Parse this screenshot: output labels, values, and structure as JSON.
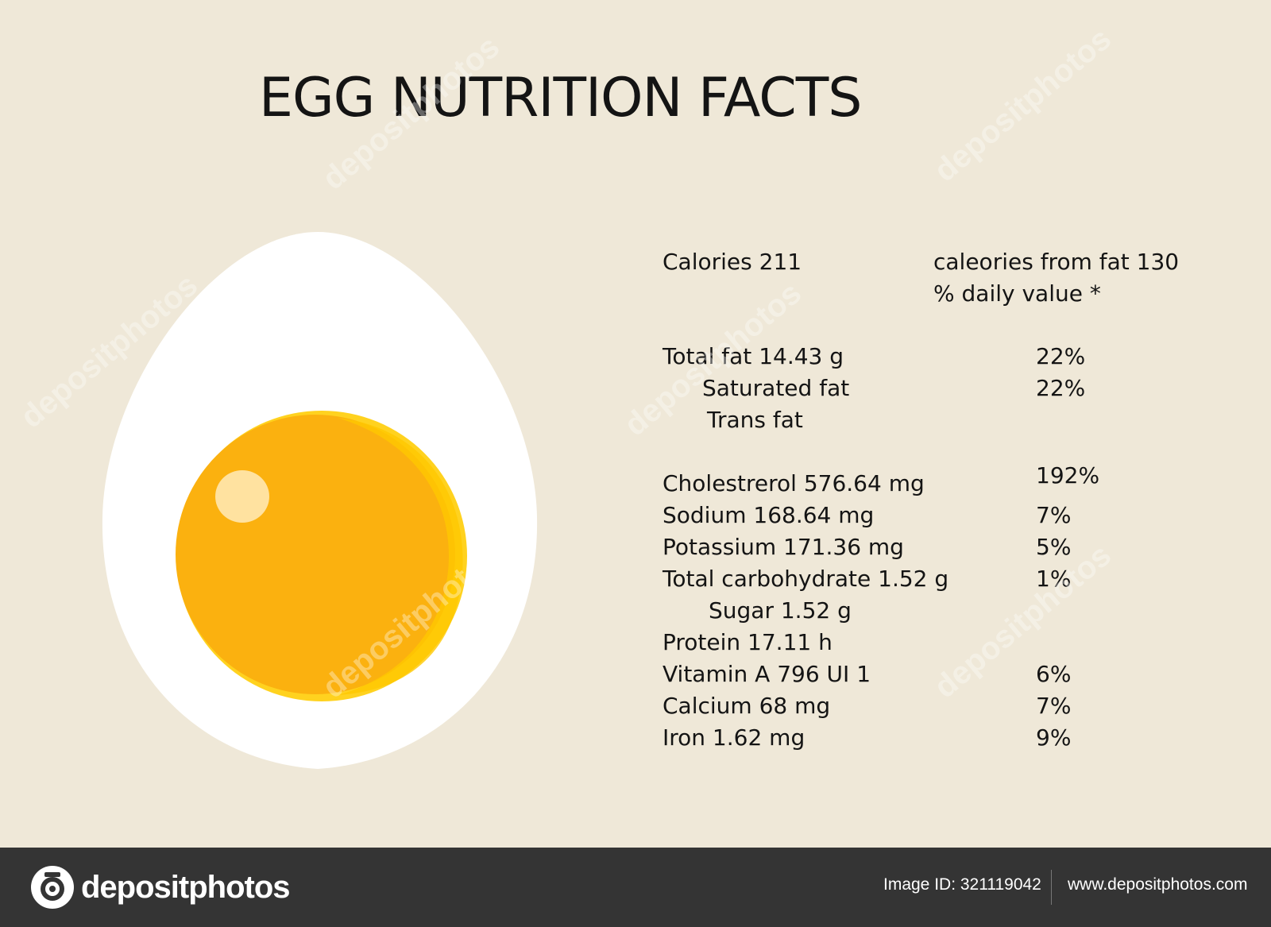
{
  "title": "EGG NUTRITION FACTS",
  "colors": {
    "background": "#efe8d8",
    "egg_white": "#ffffff",
    "yolk": "#fbb10f",
    "yolk_rim": "#ffd21f",
    "yolk_highlight": "#ffe2a0",
    "footer": "#343434"
  },
  "calories": {
    "label": "Calories 211",
    "from_fat": "caleories from fat 130",
    "daily_value_header": "% daily value *"
  },
  "nutrients": [
    {
      "label": "Total fat 14.43 g",
      "pct": "22%"
    },
    {
      "label": "Saturated fat",
      "pct": "22%"
    },
    {
      "label": "Trans fat",
      "pct": ""
    },
    {
      "label": "Cholestrerol 576.64 mg",
      "pct": "192%"
    },
    {
      "label": "Sodium 168.64 mg",
      "pct": "7%"
    },
    {
      "label": "Potassium 171.36 mg",
      "pct": "5%"
    },
    {
      "label": "Total carbohydrate 1.52 g",
      "pct": "1%"
    },
    {
      "label": "Sugar 1.52 g",
      "pct": ""
    },
    {
      "label": "Protein 17.11 h",
      "pct": ""
    },
    {
      "label": "Vitamin A 796 UI 1",
      "pct": "6%"
    },
    {
      "label": "Calcium 68 mg",
      "pct": "7%"
    },
    {
      "label": "Iron 1.62 mg",
      "pct": "9%"
    }
  ],
  "footer": {
    "logo_text": "depositphotos",
    "logo_icon": "camera-lens-icon",
    "image_id": "Image ID: 321119042",
    "website": "www.depositphotos.com"
  },
  "watermark_text": "depositphotos"
}
